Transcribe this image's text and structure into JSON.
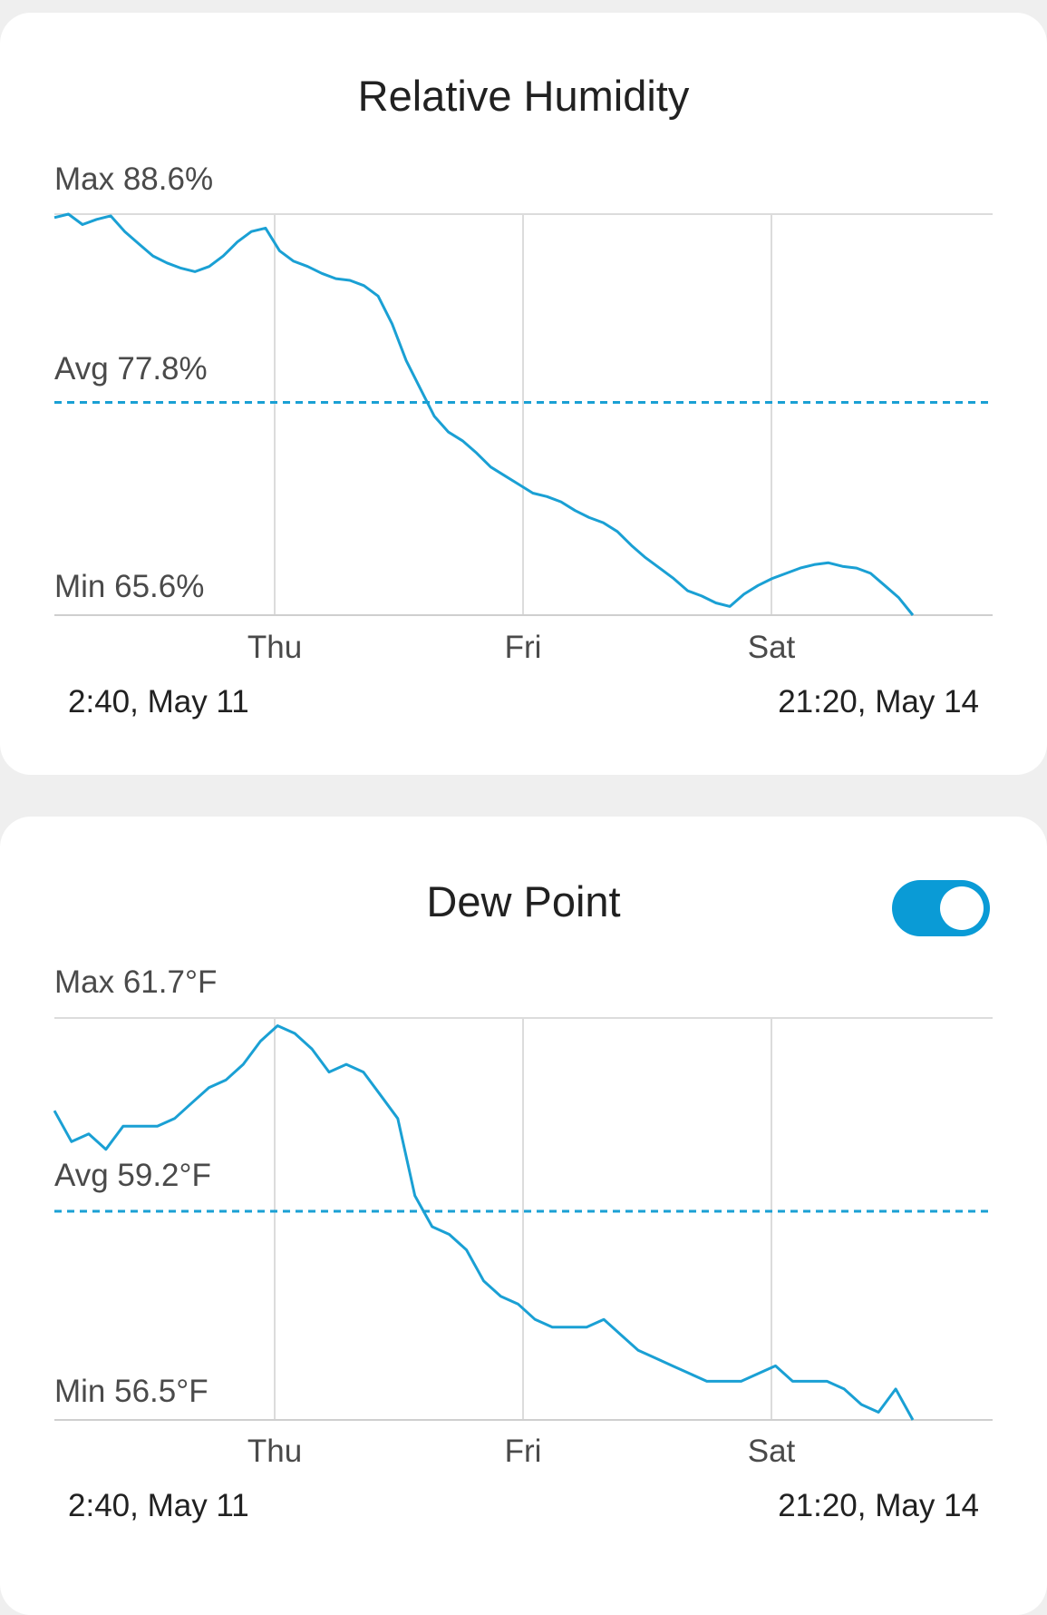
{
  "colors": {
    "line": "#1aa0d4",
    "accent": "#0a9bd6",
    "grid": "#dcdcdc",
    "axis": "#cfcfcf"
  },
  "charts": [
    {
      "id": "rh",
      "title": "Relative Humidity",
      "max_label": "Max 88.6%",
      "avg_label": "Avg 77.8%",
      "min_label": "Min 65.6%",
      "day_labels": [
        "Thu",
        "Fri",
        "Sat"
      ],
      "range_start": "2:40,  May 11",
      "range_end": "21:20,  May 14"
    },
    {
      "id": "dp",
      "title": "Dew Point",
      "max_label": "Max 61.7°F",
      "avg_label": "Avg 59.2°F",
      "min_label": "Min 56.5°F",
      "day_labels": [
        "Thu",
        "Fri",
        "Sat"
      ],
      "range_start": "2:40,  May 11",
      "range_end": "21:20,  May 14",
      "toggle": {
        "on": true,
        "icon": "toggle-switch-icon"
      }
    }
  ],
  "chart_data": [
    {
      "type": "line",
      "title": "Relative Humidity",
      "ylim": [
        65.6,
        88.6
      ],
      "y_max": 88.6,
      "y_avg": 77.8,
      "y_min": 65.6,
      "unit": "%",
      "x_start": "2:40,  May 11",
      "x_end": "21:20,  May 14",
      "x_ticks": [
        "Thu",
        "Fri",
        "Sat"
      ],
      "series": [
        {
          "values": [
            88.4,
            88.6,
            88.0,
            88.3,
            88.5,
            87.6,
            86.9,
            86.2,
            85.8,
            85.5,
            85.3,
            85.6,
            86.2,
            87.0,
            87.6,
            87.8,
            86.5,
            85.9,
            85.6,
            85.2,
            84.9,
            84.8,
            84.5,
            83.9,
            82.3,
            80.2,
            78.6,
            77.0,
            76.1,
            75.6,
            74.9,
            74.1,
            73.6,
            73.1,
            72.6,
            72.4,
            72.1,
            71.6,
            71.2,
            70.9,
            70.4,
            69.6,
            68.9,
            68.3,
            67.7,
            67.0,
            66.7,
            66.3,
            66.1,
            66.8,
            67.3,
            67.7,
            68.0,
            68.3,
            68.5,
            68.6,
            68.4,
            68.3,
            68.0,
            67.3,
            66.6,
            65.6
          ]
        }
      ]
    },
    {
      "type": "line",
      "title": "Dew Point",
      "ylim": [
        56.5,
        61.7
      ],
      "y_max": 61.7,
      "y_avg": 59.2,
      "y_min": 56.5,
      "unit": "°F",
      "x_start": "2:40,  May 11",
      "x_end": "21:20,  May 14",
      "x_ticks": [
        "Thu",
        "Fri",
        "Sat"
      ],
      "series": [
        {
          "values": [
            60.5,
            60.1,
            60.2,
            60.0,
            60.3,
            60.3,
            60.3,
            60.4,
            60.6,
            60.8,
            60.9,
            61.1,
            61.4,
            61.6,
            61.5,
            61.3,
            61.0,
            61.1,
            61.0,
            60.7,
            60.4,
            59.4,
            59.0,
            58.9,
            58.7,
            58.3,
            58.1,
            58.0,
            57.8,
            57.7,
            57.7,
            57.7,
            57.8,
            57.6,
            57.4,
            57.3,
            57.2,
            57.1,
            57.0,
            57.0,
            57.0,
            57.1,
            57.2,
            57.0,
            57.0,
            57.0,
            56.9,
            56.7,
            56.6,
            56.9,
            56.5
          ]
        }
      ]
    }
  ]
}
